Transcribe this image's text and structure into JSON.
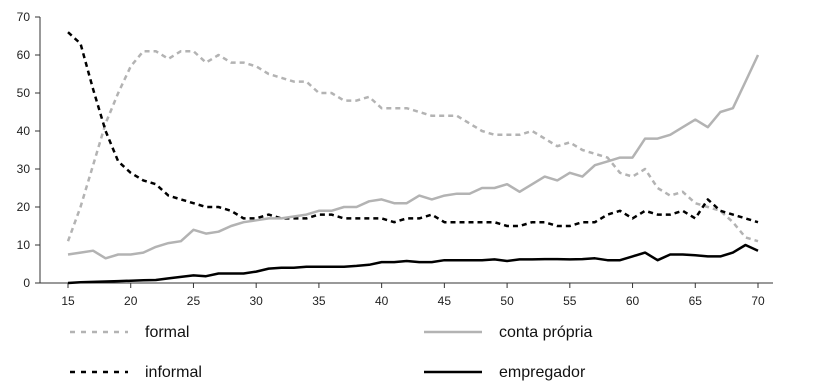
{
  "chart_data": {
    "type": "line",
    "title": "",
    "xlabel": "",
    "ylabel": "",
    "xlim": [
      15,
      70
    ],
    "ylim": [
      0,
      70
    ],
    "x_ticks": [
      "15",
      "20",
      "25",
      "30",
      "35",
      "40",
      "45",
      "50",
      "55",
      "60",
      "65",
      "70"
    ],
    "y_ticks": [
      "0",
      "10",
      "20",
      "30",
      "40",
      "50",
      "60",
      "70"
    ],
    "grid": false,
    "legend_position": "bottom",
    "series": [
      {
        "name": "formal",
        "color": "#b3b3b3",
        "style": "dashed",
        "x": [
          15,
          16,
          17,
          18,
          19,
          20,
          21,
          22,
          23,
          24,
          25,
          26,
          27,
          28,
          29,
          30,
          31,
          32,
          33,
          34,
          35,
          36,
          37,
          38,
          39,
          40,
          41,
          42,
          43,
          44,
          45,
          46,
          47,
          48,
          49,
          50,
          51,
          52,
          53,
          54,
          55,
          56,
          57,
          58,
          59,
          60,
          61,
          62,
          63,
          64,
          65,
          66,
          67,
          68,
          69,
          70
        ],
        "values": [
          11,
          20,
          31,
          42,
          50,
          57,
          61,
          61,
          59,
          61,
          61,
          58,
          60,
          58,
          58,
          57,
          55,
          54,
          53,
          53,
          50,
          50,
          48,
          48,
          49,
          46,
          46,
          46,
          45,
          44,
          44,
          44,
          42,
          40,
          39,
          39,
          39,
          40,
          38,
          36,
          37,
          35,
          34,
          33,
          29,
          28,
          30,
          25,
          23,
          24,
          21,
          20,
          19,
          16,
          12,
          11
        ]
      },
      {
        "name": "informal",
        "color": "#000000",
        "style": "dashed",
        "x": [
          15,
          16,
          17,
          18,
          19,
          20,
          21,
          22,
          23,
          24,
          25,
          26,
          27,
          28,
          29,
          30,
          31,
          32,
          33,
          34,
          35,
          36,
          37,
          38,
          39,
          40,
          41,
          42,
          43,
          44,
          45,
          46,
          47,
          48,
          49,
          50,
          51,
          52,
          53,
          54,
          55,
          56,
          57,
          58,
          59,
          60,
          61,
          62,
          63,
          64,
          65,
          66,
          67,
          68,
          69,
          70
        ],
        "values": [
          66,
          63,
          51,
          40,
          32,
          29,
          27,
          26,
          23,
          22,
          21,
          20,
          20,
          19,
          17,
          17,
          18,
          17,
          17,
          17,
          18,
          18,
          17,
          17,
          17,
          17,
          16,
          17,
          17,
          18,
          16,
          16,
          16,
          16,
          16,
          15,
          15,
          16,
          16,
          15,
          15,
          16,
          16,
          18,
          19,
          17,
          19,
          18,
          18,
          19,
          17,
          22,
          19,
          18,
          17,
          16
        ]
      },
      {
        "name": "conta própria",
        "color": "#b3b3b3",
        "style": "solid",
        "x": [
          15,
          16,
          17,
          18,
          19,
          20,
          21,
          22,
          23,
          24,
          25,
          26,
          27,
          28,
          29,
          30,
          31,
          32,
          33,
          34,
          35,
          36,
          37,
          38,
          39,
          40,
          41,
          42,
          43,
          44,
          45,
          46,
          47,
          48,
          49,
          50,
          51,
          52,
          53,
          54,
          55,
          56,
          57,
          58,
          59,
          60,
          61,
          62,
          63,
          64,
          65,
          66,
          67,
          68,
          69,
          70
        ],
        "values": [
          7.5,
          8,
          8.5,
          6.5,
          7.5,
          7.5,
          8,
          9.5,
          10.5,
          11,
          14,
          13,
          13.5,
          15,
          16,
          16.5,
          17,
          17,
          17.5,
          18,
          19,
          19,
          20,
          20,
          21.5,
          22,
          21,
          21,
          23,
          22,
          23,
          23.5,
          23.5,
          25,
          25,
          26,
          24,
          26,
          28,
          27,
          29,
          28,
          31,
          32,
          33,
          33,
          38,
          38,
          39,
          41,
          43,
          41,
          45,
          46,
          53,
          60
        ]
      },
      {
        "name": "empregador",
        "color": "#000000",
        "style": "solid",
        "x": [
          15,
          16,
          17,
          18,
          19,
          20,
          21,
          22,
          23,
          24,
          25,
          26,
          27,
          28,
          29,
          30,
          31,
          32,
          33,
          34,
          35,
          36,
          37,
          38,
          39,
          40,
          41,
          42,
          43,
          44,
          45,
          46,
          47,
          48,
          49,
          50,
          51,
          52,
          53,
          54,
          55,
          56,
          57,
          58,
          59,
          60,
          61,
          62,
          63,
          64,
          65,
          66,
          67,
          68,
          69,
          70
        ],
        "values": [
          0,
          0.2,
          0.3,
          0.4,
          0.5,
          0.6,
          0.7,
          0.8,
          1.2,
          1.6,
          2,
          1.8,
          2.5,
          2.5,
          2.5,
          3,
          3.8,
          4,
          4,
          4.3,
          4.3,
          4.3,
          4.3,
          4.5,
          4.8,
          5.5,
          5.5,
          5.8,
          5.5,
          5.5,
          6,
          6,
          6,
          6,
          6.2,
          5.8,
          6.2,
          6.2,
          6.3,
          6.3,
          6.2,
          6.3,
          6.5,
          6,
          6,
          7,
          8,
          6,
          7.5,
          7.5,
          7.3,
          7,
          7,
          8,
          10,
          8.5
        ]
      }
    ]
  }
}
